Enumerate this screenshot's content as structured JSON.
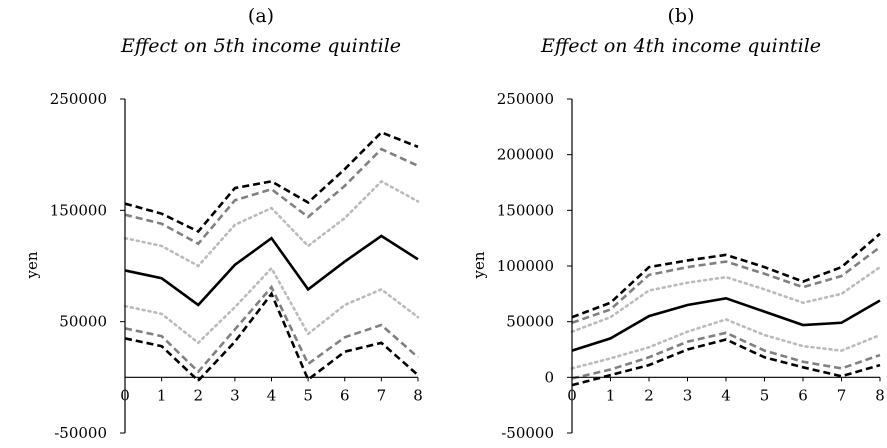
{
  "chart_data": [
    {
      "type": "line",
      "panel_label": "(a)",
      "title": "Effect on 5th income quintile",
      "xlabel": "",
      "ylabel": "yen",
      "ylim": [
        -50000,
        250000
      ],
      "yticks": [
        "250000",
        "150000",
        "50000",
        "-50000"
      ],
      "ytick_values": [
        250000,
        150000,
        50000,
        -50000
      ],
      "xticks": [
        "0",
        "1",
        "2",
        "3",
        "4",
        "5",
        "6",
        "7",
        "8"
      ],
      "x": [
        0,
        1,
        2,
        3,
        4,
        5,
        6,
        7,
        8
      ],
      "series": [
        {
          "style": "solid",
          "color": "#000000",
          "values": [
            96000,
            89000,
            65000,
            101000,
            125000,
            79000,
            104000,
            127000,
            106000
          ]
        },
        {
          "style": "dotted",
          "color": "#bbbbbb",
          "values": [
            125000,
            118000,
            100000,
            137000,
            152000,
            118000,
            143000,
            176000,
            158000
          ]
        },
        {
          "style": "dotted",
          "color": "#bbbbbb",
          "values": [
            64000,
            57000,
            31000,
            63000,
            98000,
            39000,
            65000,
            79000,
            54000
          ]
        },
        {
          "style": "dashed",
          "color": "#808080",
          "values": [
            146000,
            138000,
            120000,
            159000,
            169000,
            144000,
            172000,
            205000,
            190000
          ]
        },
        {
          "style": "dashed",
          "color": "#808080",
          "values": [
            44000,
            37000,
            5000,
            43000,
            81000,
            12000,
            36000,
            47000,
            18000
          ]
        },
        {
          "style": "dashed",
          "color": "#000000",
          "values": [
            156000,
            147000,
            131000,
            170000,
            176000,
            157000,
            187000,
            220000,
            207000
          ]
        },
        {
          "style": "dashed",
          "color": "#000000",
          "values": [
            35000,
            28000,
            -3000,
            32000,
            75000,
            -2000,
            23000,
            31000,
            2000
          ]
        }
      ]
    },
    {
      "type": "line",
      "panel_label": "(b)",
      "title": "Effect on 4th income quintile",
      "xlabel": "",
      "ylabel": "yen",
      "ylim": [
        -50000,
        250000
      ],
      "yticks": [
        "250000",
        "200000",
        "150000",
        "100000",
        "50000",
        "0",
        "-50000"
      ],
      "ytick_values": [
        250000,
        200000,
        150000,
        100000,
        50000,
        0,
        -50000
      ],
      "xticks": [
        "0",
        "1",
        "2",
        "3",
        "4",
        "5",
        "6",
        "7",
        "8"
      ],
      "x": [
        0,
        1,
        2,
        3,
        4,
        5,
        6,
        7,
        8
      ],
      "series": [
        {
          "style": "solid",
          "color": "#000000",
          "values": [
            24000,
            35000,
            55000,
            65000,
            71000,
            59000,
            47000,
            49000,
            69000
          ]
        },
        {
          "style": "dotted",
          "color": "#bbbbbb",
          "values": [
            41000,
            54000,
            78000,
            85000,
            90000,
            79000,
            67000,
            75000,
            99000
          ]
        },
        {
          "style": "dotted",
          "color": "#bbbbbb",
          "values": [
            8000,
            17000,
            27000,
            41000,
            52000,
            38000,
            28000,
            24000,
            38000
          ]
        },
        {
          "style": "dashed",
          "color": "#808080",
          "values": [
            49000,
            61000,
            92000,
            99000,
            104000,
            93000,
            81000,
            91000,
            117000
          ]
        },
        {
          "style": "dashed",
          "color": "#808080",
          "values": [
            -1000,
            7000,
            18000,
            32000,
            40000,
            24000,
            14000,
            8000,
            20000
          ]
        },
        {
          "style": "dashed",
          "color": "#000000",
          "values": [
            54000,
            67000,
            99000,
            105000,
            110000,
            99000,
            86000,
            99000,
            129000
          ]
        },
        {
          "style": "dashed",
          "color": "#000000",
          "values": [
            -7000,
            2000,
            11000,
            25000,
            34000,
            18000,
            9000,
            1000,
            11000
          ]
        }
      ]
    }
  ]
}
